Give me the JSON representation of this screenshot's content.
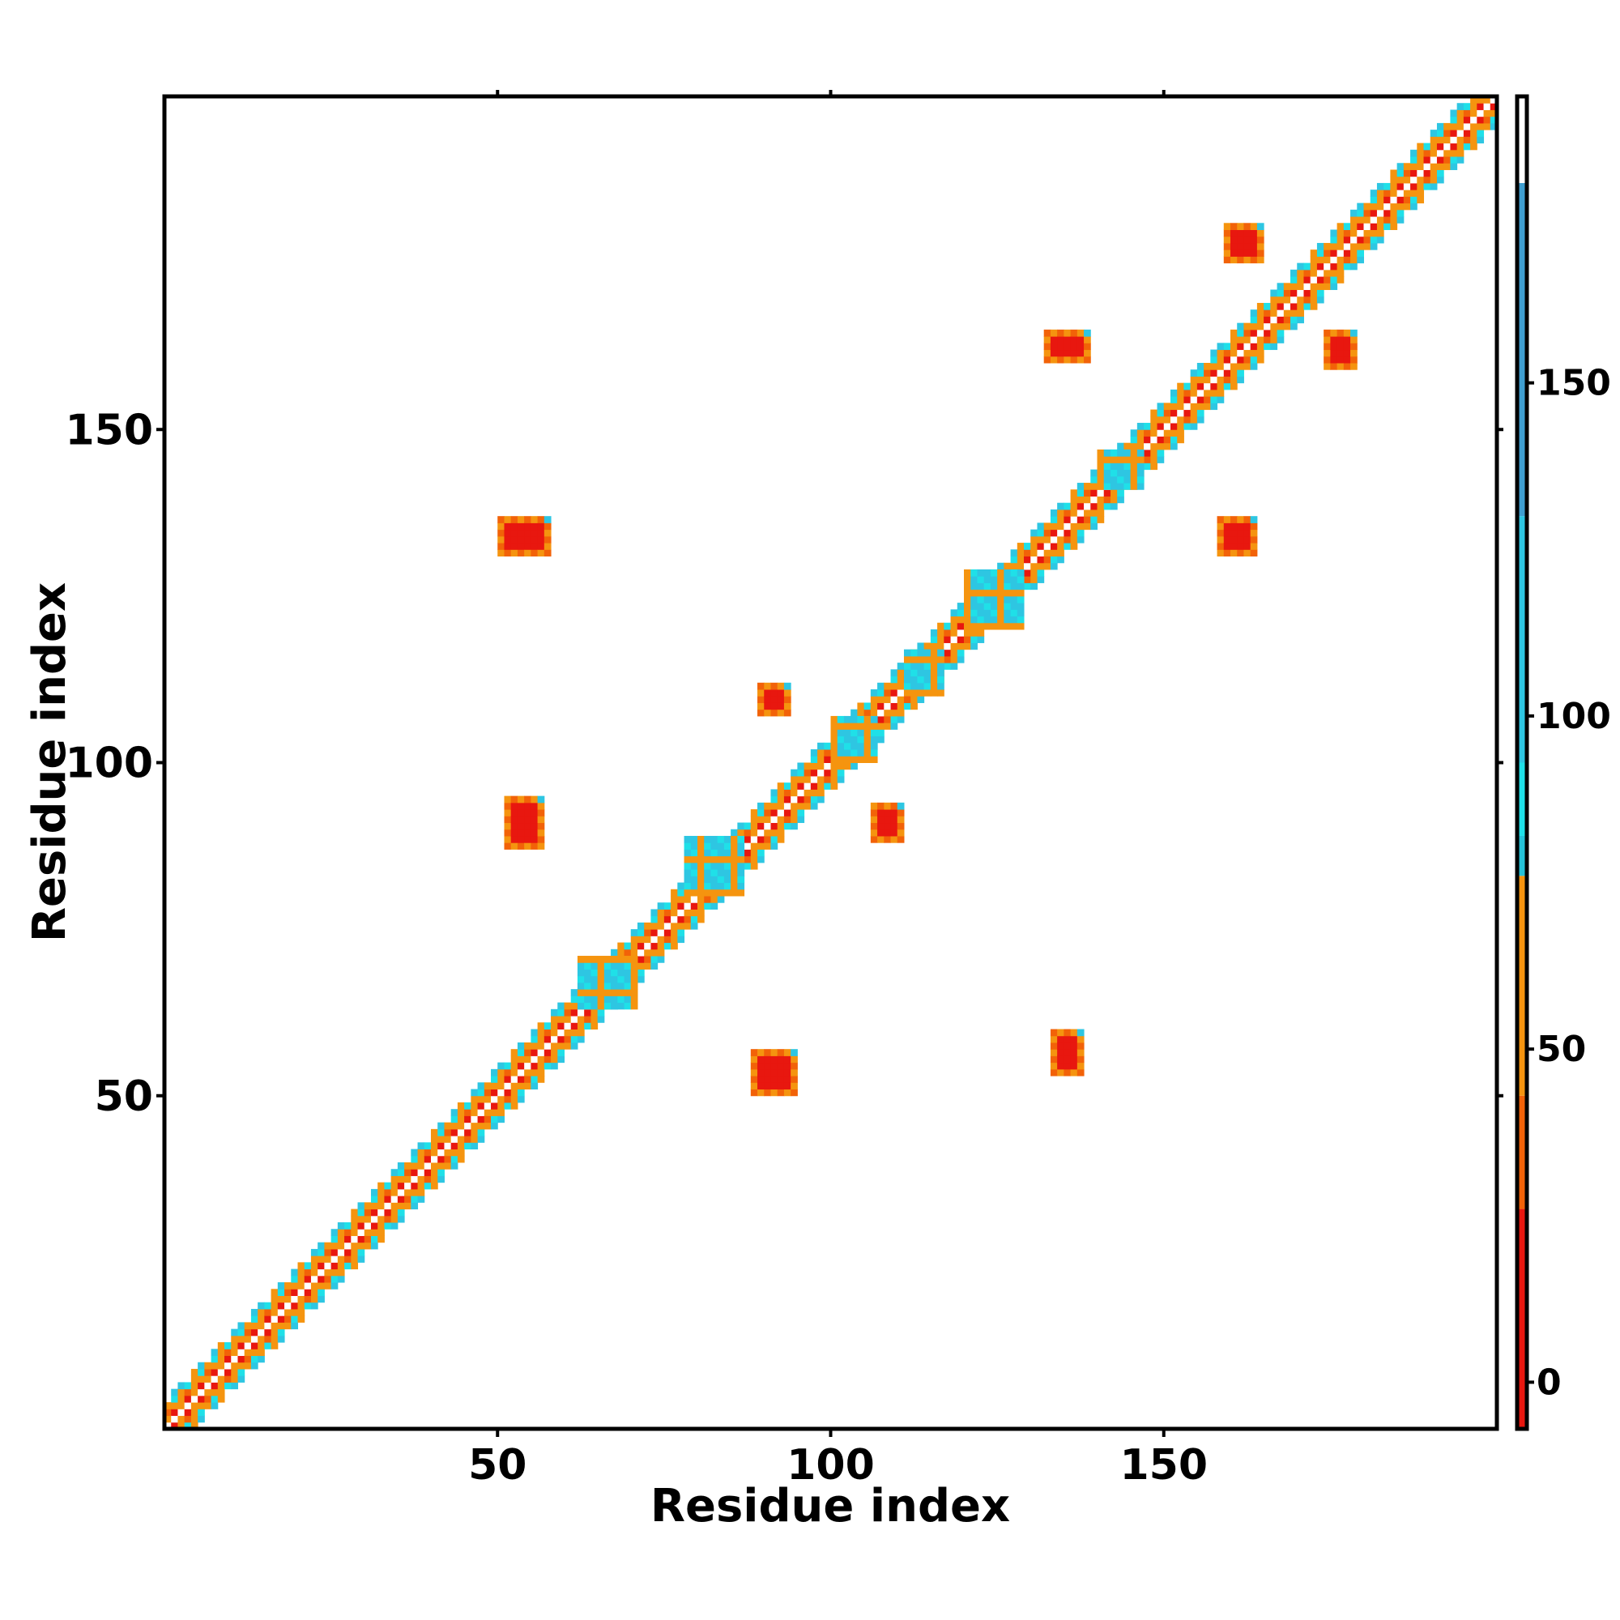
{
  "chart_data": {
    "type": "heatmap",
    "title": "",
    "xlabel": "Residue index",
    "ylabel": "Residue index",
    "xlim": [
      0,
      200
    ],
    "ylim": [
      0,
      200
    ],
    "x_ticks": [
      50,
      100,
      150
    ],
    "y_ticks": [
      50,
      100,
      150
    ],
    "grid": false,
    "legend": "colorbar-right",
    "colorbar": {
      "range": [
        -7,
        193
      ],
      "ticks": [
        0,
        50,
        100,
        150
      ],
      "bands": [
        {
          "from": -7,
          "to": 26,
          "color": "#e8170f"
        },
        {
          "from": 26,
          "to": 43,
          "color": "#f26208"
        },
        {
          "from": 43,
          "to": 76,
          "color": "#f5940f"
        },
        {
          "from": 76,
          "to": 82,
          "color": "#25c2d8"
        },
        {
          "from": 82,
          "to": 93,
          "color": "#1fe0e8"
        },
        {
          "from": 93,
          "to": 130,
          "color": "#2ec6e2"
        },
        {
          "from": 130,
          "to": 180,
          "color": "#3f9ed0"
        },
        {
          "from": 180,
          "to": 193,
          "color": "#ffffff"
        }
      ]
    },
    "diagonal": {
      "start": 0,
      "end": 200
    },
    "clusters": [
      {
        "x": [
          51,
          56
        ],
        "y": [
          87,
          94
        ],
        "value": 5
      },
      {
        "x": [
          50,
          57
        ],
        "y": [
          131,
          136
        ],
        "value": 5
      },
      {
        "x": [
          88,
          94
        ],
        "y": [
          50,
          56
        ],
        "value": 5
      },
      {
        "x": [
          89,
          93
        ],
        "y": [
          107,
          111
        ],
        "value": 5
      },
      {
        "x": [
          106,
          110
        ],
        "y": [
          88,
          93
        ],
        "value": 5
      },
      {
        "x": [
          133,
          137
        ],
        "y": [
          53,
          59
        ],
        "value": 5
      },
      {
        "x": [
          132,
          138
        ],
        "y": [
          160,
          164
        ],
        "value": 5
      },
      {
        "x": [
          158,
          163
        ],
        "y": [
          131,
          136
        ],
        "value": 5
      },
      {
        "x": [
          159,
          164
        ],
        "y": [
          175,
          180
        ],
        "value": 5
      },
      {
        "x": [
          174,
          178
        ],
        "y": [
          159,
          164
        ],
        "value": 5
      },
      {
        "x": [
          62,
          70
        ],
        "y": [
          63,
          70
        ],
        "value": 110
      },
      {
        "x": [
          78,
          86
        ],
        "y": [
          80,
          88
        ],
        "value": 110
      },
      {
        "x": [
          100,
          106
        ],
        "y": [
          100,
          106
        ],
        "value": 110
      },
      {
        "x": [
          111,
          116
        ],
        "y": [
          110,
          116
        ],
        "value": 110
      },
      {
        "x": [
          140,
          146
        ],
        "y": [
          141,
          146
        ],
        "value": 110
      },
      {
        "x": [
          120,
          128
        ],
        "y": [
          120,
          128
        ],
        "value": 110
      }
    ]
  }
}
